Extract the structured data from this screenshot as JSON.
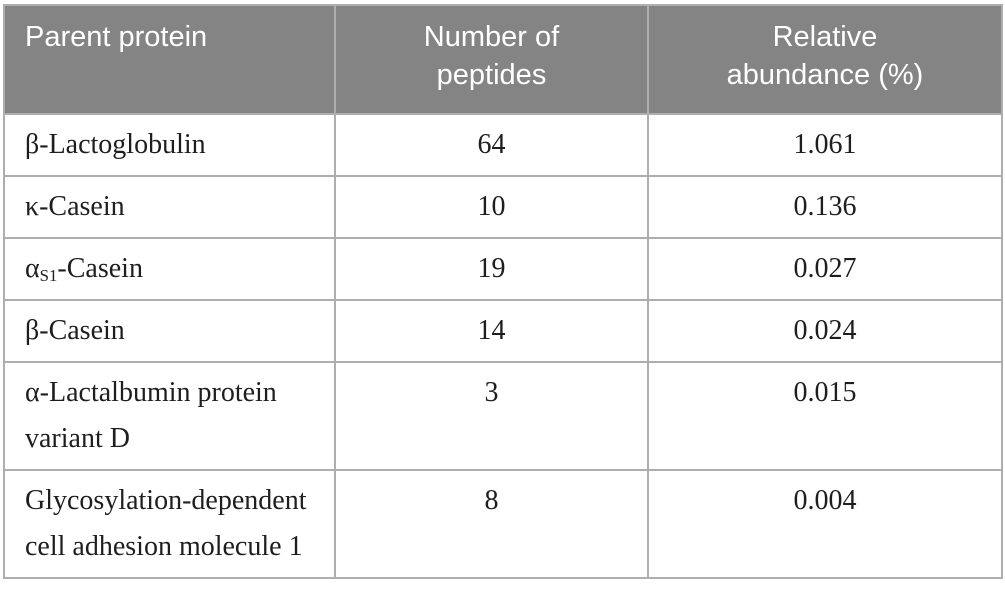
{
  "table": {
    "title": "Parent protein peptide abundance table",
    "columns": [
      {
        "id": "protein",
        "label": "Parent protein",
        "display": "Parent protein",
        "align": "left"
      },
      {
        "id": "peptides",
        "label": "Number of peptides",
        "display": "Number of\npeptides",
        "align": "center"
      },
      {
        "id": "abundance",
        "label": "Relative abundance (%)",
        "display": "Relative\nabundance (%)",
        "align": "center"
      }
    ],
    "rows": [
      {
        "protein": [
          {
            "text": "β-Lactoglobulin"
          }
        ],
        "peptides": "64",
        "abundance": "1.061"
      },
      {
        "protein": [
          {
            "text": "κ-Casein"
          }
        ],
        "peptides": "10",
        "abundance": "0.136"
      },
      {
        "protein": [
          {
            "text": "α"
          },
          {
            "text": "S1",
            "sub": true
          },
          {
            "text": "-Casein"
          }
        ],
        "peptides": "19",
        "abundance": "0.027"
      },
      {
        "protein": [
          {
            "text": "β-Casein"
          }
        ],
        "peptides": "14",
        "abundance": "0.024"
      },
      {
        "protein": [
          {
            "text": "α-Lactalbumin protein variant D"
          }
        ],
        "peptides": "3",
        "abundance": "0.015"
      },
      {
        "protein": [
          {
            "text": "Glycosylation-dependent cell adhesion molecule 1"
          }
        ],
        "peptides": "8",
        "abundance": "0.004"
      }
    ],
    "colors": {
      "header_bg": "#848484",
      "header_text": "#ffffff",
      "cell_border": "#aeaeae",
      "body_text": "#1e1e1e",
      "page_bg": "#ffffff"
    }
  }
}
